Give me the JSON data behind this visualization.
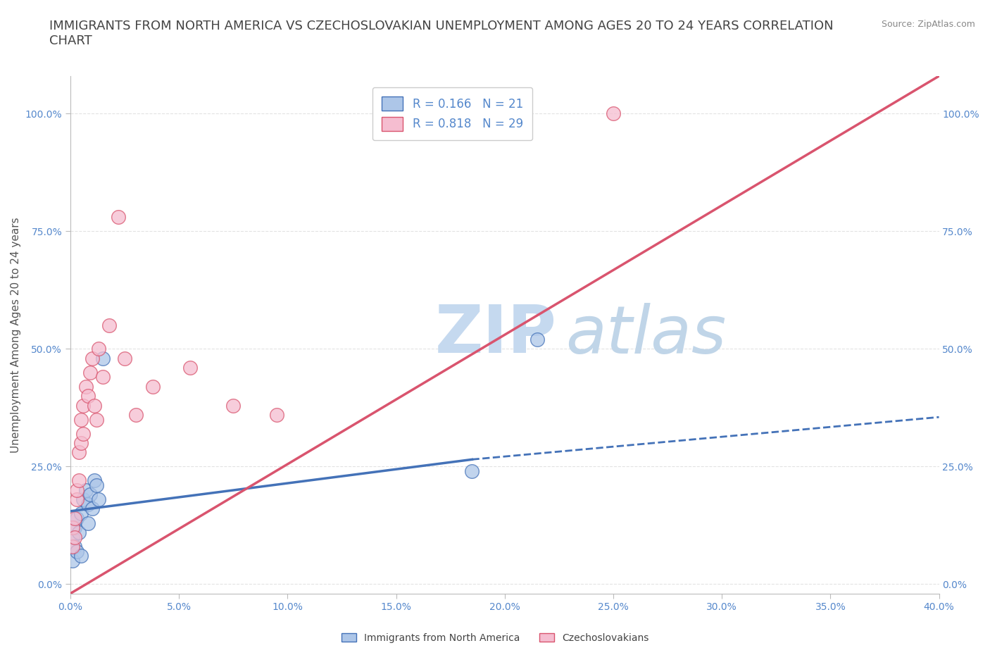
{
  "title": "IMMIGRANTS FROM NORTH AMERICA VS CZECHOSLOVAKIAN UNEMPLOYMENT AMONG AGES 20 TO 24 YEARS CORRELATION\nCHART",
  "source": "Source: ZipAtlas.com",
  "ylabel": "Unemployment Among Ages 20 to 24 years",
  "xlim": [
    0.0,
    0.4
  ],
  "ylim": [
    -0.02,
    1.08
  ],
  "xticks": [
    0.0,
    0.05,
    0.1,
    0.15,
    0.2,
    0.25,
    0.3,
    0.35,
    0.4
  ],
  "yticks": [
    0.0,
    0.25,
    0.5,
    0.75,
    1.0
  ],
  "xtick_labels": [
    "0.0%",
    "5.0%",
    "10.0%",
    "15.0%",
    "20.0%",
    "25.0%",
    "30.0%",
    "35.0%",
    "40.0%"
  ],
  "ytick_labels": [
    "0.0%",
    "25.0%",
    "50.0%",
    "75.0%",
    "100.0%"
  ],
  "blue_color": "#adc6e8",
  "pink_color": "#f5bdd0",
  "blue_line_color": "#4472b8",
  "pink_line_color": "#d9546e",
  "blue_R": 0.166,
  "blue_N": 21,
  "pink_R": 0.818,
  "pink_N": 29,
  "watermark_zip": "ZIP",
  "watermark_atlas": "atlas",
  "blue_scatter_x": [
    0.001,
    0.001,
    0.002,
    0.002,
    0.003,
    0.003,
    0.004,
    0.005,
    0.005,
    0.006,
    0.007,
    0.008,
    0.008,
    0.009,
    0.01,
    0.011,
    0.012,
    0.013,
    0.015,
    0.185,
    0.215
  ],
  "blue_scatter_y": [
    0.1,
    0.05,
    0.08,
    0.12,
    0.14,
    0.07,
    0.11,
    0.15,
    0.06,
    0.18,
    0.2,
    0.17,
    0.13,
    0.19,
    0.16,
    0.22,
    0.21,
    0.18,
    0.48,
    0.24,
    0.52
  ],
  "pink_scatter_x": [
    0.001,
    0.001,
    0.002,
    0.002,
    0.003,
    0.003,
    0.004,
    0.004,
    0.005,
    0.005,
    0.006,
    0.006,
    0.007,
    0.008,
    0.009,
    0.01,
    0.011,
    0.012,
    0.013,
    0.015,
    0.018,
    0.022,
    0.025,
    0.03,
    0.038,
    0.055,
    0.075,
    0.095,
    0.25
  ],
  "pink_scatter_y": [
    0.08,
    0.12,
    0.14,
    0.1,
    0.18,
    0.2,
    0.22,
    0.28,
    0.3,
    0.35,
    0.32,
    0.38,
    0.42,
    0.4,
    0.45,
    0.48,
    0.38,
    0.35,
    0.5,
    0.44,
    0.55,
    0.78,
    0.48,
    0.36,
    0.42,
    0.46,
    0.38,
    0.36,
    1.0
  ],
  "blue_trend_x0": 0.0,
  "blue_trend_y0": 0.155,
  "blue_trend_x1": 0.185,
  "blue_trend_y1": 0.265,
  "blue_trend_x2": 0.4,
  "blue_trend_y2": 0.355,
  "pink_trend_x0": 0.0,
  "pink_trend_y0": -0.02,
  "pink_trend_x1": 0.4,
  "pink_trend_y1": 1.08,
  "background_color": "#ffffff",
  "title_fontsize": 13,
  "axis_label_fontsize": 11,
  "tick_fontsize": 10,
  "legend_fontsize": 12,
  "watermark_color": "#c5d9ef",
  "watermark_atlas_color": "#c0d5e8",
  "watermark_fontsize": 68,
  "grid_color": "#e0e0e0",
  "right_ytick_labels": [
    "0.0%",
    "25.0%",
    "50.0%",
    "75.0%",
    "100.0%"
  ]
}
